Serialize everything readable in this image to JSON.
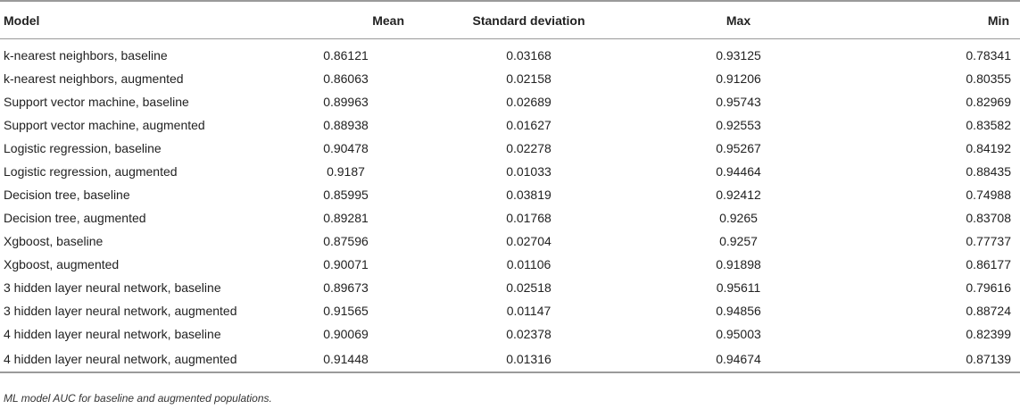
{
  "table": {
    "headers": [
      "Model",
      "Mean",
      "Standard deviation",
      "Max",
      "Min"
    ],
    "rows": [
      [
        "k-nearest neighbors, baseline",
        "0.86121",
        "0.03168",
        "0.93125",
        "0.78341"
      ],
      [
        "k-nearest neighbors, augmented",
        "0.86063",
        "0.02158",
        "0.91206",
        "0.80355"
      ],
      [
        "Support vector machine, baseline",
        "0.89963",
        "0.02689",
        "0.95743",
        "0.82969"
      ],
      [
        "Support vector machine, augmented",
        "0.88938",
        "0.01627",
        "0.92553",
        "0.83582"
      ],
      [
        "Logistic regression, baseline",
        "0.90478",
        "0.02278",
        "0.95267",
        "0.84192"
      ],
      [
        "Logistic regression, augmented",
        "0.9187",
        "0.01033",
        "0.94464",
        "0.88435"
      ],
      [
        "Decision tree, baseline",
        "0.85995",
        "0.03819",
        "0.92412",
        "0.74988"
      ],
      [
        "Decision tree, augmented",
        "0.89281",
        "0.01768",
        "0.9265",
        "0.83708"
      ],
      [
        "Xgboost, baseline",
        "0.87596",
        "0.02704",
        "0.9257",
        "0.77737"
      ],
      [
        "Xgboost, augmented",
        "0.90071",
        "0.01106",
        "0.91898",
        "0.86177"
      ],
      [
        "3 hidden layer neural network, baseline",
        "0.89673",
        "0.02518",
        "0.95611",
        "0.79616"
      ],
      [
        "3 hidden layer neural network, augmented",
        "0.91565",
        "0.01147",
        "0.94856",
        "0.88724"
      ],
      [
        "4 hidden layer neural network, baseline",
        "0.90069",
        "0.02378",
        "0.95003",
        "0.82399"
      ],
      [
        "4 hidden layer neural network, augmented",
        "0.91448",
        "0.01316",
        "0.94674",
        "0.87139"
      ]
    ]
  },
  "caption": "ML model AUC for baseline and augmented populations."
}
